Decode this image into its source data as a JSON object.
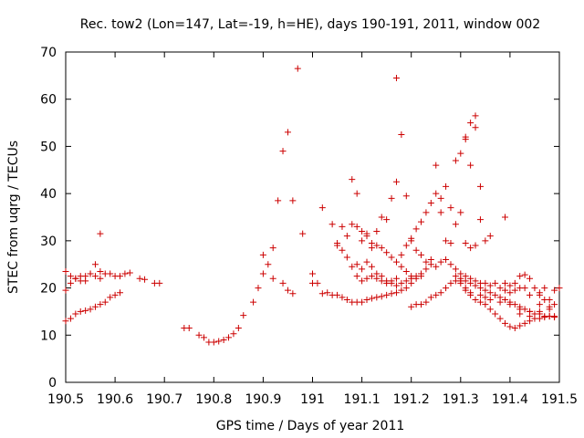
{
  "chart_data": {
    "type": "scatter",
    "title": "Rec. tow2 (Lon=147, Lat=-19, h=HE), days 190-191, 2011, window 002",
    "xlabel": "GPS time / Days of year 2011",
    "ylabel": "STEC from uqrg / TECUs",
    "xlim": [
      190.5,
      191.5
    ],
    "ylim": [
      0,
      70
    ],
    "xticks": [
      190.5,
      190.6,
      190.7,
      190.8,
      190.9,
      191,
      191.1,
      191.2,
      191.3,
      191.4,
      191.5
    ],
    "xtick_labels": [
      "190.5",
      "190.6",
      "190.7",
      "190.8",
      "190.9",
      "191",
      "191.1",
      "191.2",
      "191.3",
      "191.4",
      "191.5"
    ],
    "yticks": [
      0,
      10,
      20,
      30,
      40,
      50,
      60,
      70
    ],
    "ytick_labels": [
      "0",
      "10",
      "20",
      "30",
      "40",
      "50",
      "60",
      "70"
    ],
    "grid": false,
    "marker": "+",
    "color": "#cc0000",
    "series": [
      {
        "points": [
          [
            190.5,
            23.5
          ],
          [
            190.51,
            22.5
          ],
          [
            190.52,
            22.0
          ],
          [
            190.53,
            22.5
          ],
          [
            190.54,
            22.5
          ],
          [
            190.55,
            23.0
          ],
          [
            190.56,
            22.5
          ],
          [
            190.57,
            22.0
          ],
          [
            190.58,
            23.0
          ],
          [
            190.59,
            23.0
          ],
          [
            190.6,
            22.5
          ],
          [
            190.61,
            22.5
          ],
          [
            190.62,
            23.0
          ],
          [
            190.63,
            23.2
          ],
          [
            190.65,
            22.0
          ],
          [
            190.66,
            21.8
          ],
          [
            190.68,
            21.0
          ],
          [
            190.69,
            21.0
          ],
          [
            190.57,
            31.5
          ],
          [
            190.5,
            19.5
          ],
          [
            190.51,
            21.0
          ],
          [
            190.52,
            22.0
          ],
          [
            190.53,
            21.5
          ],
          [
            190.54,
            21.5
          ],
          [
            190.55,
            23.0
          ],
          [
            190.56,
            25.0
          ],
          [
            190.57,
            23.5
          ],
          [
            190.5,
            13.0
          ],
          [
            190.51,
            13.5
          ],
          [
            190.52,
            14.5
          ],
          [
            190.53,
            15.0
          ],
          [
            190.54,
            15.2
          ],
          [
            190.55,
            15.5
          ],
          [
            190.56,
            16.0
          ],
          [
            190.57,
            16.5
          ],
          [
            190.58,
            17.0
          ],
          [
            190.59,
            18.0
          ],
          [
            190.6,
            18.5
          ],
          [
            190.61,
            19.0
          ],
          [
            190.74,
            11.5
          ],
          [
            190.75,
            11.5
          ],
          [
            190.77,
            10.0
          ],
          [
            190.78,
            9.5
          ],
          [
            190.79,
            8.5
          ],
          [
            190.8,
            8.5
          ],
          [
            190.81,
            8.7
          ],
          [
            190.82,
            9.0
          ],
          [
            190.83,
            9.5
          ],
          [
            190.84,
            10.3
          ],
          [
            190.85,
            11.5
          ],
          [
            190.86,
            14.2
          ],
          [
            190.88,
            17.0
          ],
          [
            190.89,
            20.0
          ],
          [
            190.9,
            23.0
          ],
          [
            190.91,
            25.0
          ],
          [
            190.92,
            28.5
          ],
          [
            190.93,
            38.5
          ],
          [
            190.94,
            49.0
          ],
          [
            190.95,
            53.0
          ],
          [
            190.96,
            38.5
          ],
          [
            190.97,
            66.5
          ],
          [
            190.98,
            31.5
          ],
          [
            190.9,
            27.0
          ],
          [
            190.92,
            22.0
          ],
          [
            190.94,
            21.0
          ],
          [
            190.95,
            19.5
          ],
          [
            190.96,
            18.8
          ],
          [
            191.0,
            23.0
          ],
          [
            191.01,
            21.0
          ],
          [
            191.02,
            18.8
          ],
          [
            191.03,
            19.0
          ],
          [
            191.04,
            18.5
          ],
          [
            191.05,
            18.5
          ],
          [
            191.06,
            18.0
          ],
          [
            191.07,
            17.5
          ],
          [
            191.08,
            17.0
          ],
          [
            191.09,
            17.0
          ],
          [
            191.1,
            17.0
          ],
          [
            191.11,
            17.5
          ],
          [
            191.12,
            17.8
          ],
          [
            191.13,
            18.0
          ],
          [
            191.14,
            18.2
          ],
          [
            191.15,
            18.5
          ],
          [
            191.16,
            18.8
          ],
          [
            191.17,
            19.0
          ],
          [
            191.18,
            19.5
          ],
          [
            191.19,
            20.0
          ],
          [
            191.2,
            21.0
          ],
          [
            191.0,
            21.0
          ],
          [
            191.02,
            37.0
          ],
          [
            191.04,
            33.5
          ],
          [
            191.05,
            29.5
          ],
          [
            191.06,
            33.0
          ],
          [
            191.07,
            31.0
          ],
          [
            191.08,
            43.0
          ],
          [
            191.09,
            40.0
          ],
          [
            191.1,
            30.0
          ],
          [
            191.11,
            31.5
          ],
          [
            191.12,
            28.5
          ],
          [
            191.13,
            32.0
          ],
          [
            191.14,
            35.0
          ],
          [
            191.15,
            34.5
          ],
          [
            191.16,
            39.0
          ],
          [
            191.17,
            42.5
          ],
          [
            191.18,
            52.5
          ],
          [
            191.19,
            39.5
          ],
          [
            191.17,
            64.5
          ],
          [
            191.05,
            29.0
          ],
          [
            191.06,
            28.0
          ],
          [
            191.07,
            26.5
          ],
          [
            191.08,
            24.5
          ],
          [
            191.09,
            22.5
          ],
          [
            191.1,
            21.5
          ],
          [
            191.11,
            22.0
          ],
          [
            191.12,
            22.5
          ],
          [
            191.13,
            22.0
          ],
          [
            191.14,
            21.5
          ],
          [
            191.15,
            21.0
          ],
          [
            191.16,
            21.0
          ],
          [
            191.17,
            20.5
          ],
          [
            191.18,
            21.0
          ],
          [
            191.19,
            21.5
          ],
          [
            191.2,
            22.0
          ],
          [
            191.21,
            22.0
          ],
          [
            191.22,
            22.5
          ],
          [
            191.09,
            25.0
          ],
          [
            191.1,
            24.0
          ],
          [
            191.11,
            25.5
          ],
          [
            191.12,
            24.5
          ],
          [
            191.13,
            23.0
          ],
          [
            191.14,
            22.5
          ],
          [
            191.15,
            21.5
          ],
          [
            191.16,
            21.5
          ],
          [
            191.17,
            22.0
          ],
          [
            191.08,
            33.5
          ],
          [
            191.09,
            33.0
          ],
          [
            191.1,
            32.0
          ],
          [
            191.11,
            31.0
          ],
          [
            191.12,
            29.5
          ],
          [
            191.13,
            29.0
          ],
          [
            191.14,
            28.5
          ],
          [
            191.15,
            27.5
          ],
          [
            191.16,
            26.5
          ],
          [
            191.17,
            25.5
          ],
          [
            191.18,
            24.5
          ],
          [
            191.19,
            23.5
          ],
          [
            191.2,
            22.5
          ],
          [
            191.18,
            27.0
          ],
          [
            191.19,
            29.0
          ],
          [
            191.2,
            30.5
          ],
          [
            191.21,
            32.5
          ],
          [
            191.22,
            34.0
          ],
          [
            191.23,
            36.0
          ],
          [
            191.24,
            38.0
          ],
          [
            191.25,
            40.0
          ],
          [
            191.26,
            39.0
          ],
          [
            191.27,
            41.5
          ],
          [
            191.28,
            37.0
          ],
          [
            191.29,
            47.0
          ],
          [
            191.3,
            48.5
          ],
          [
            191.31,
            52.0
          ],
          [
            191.32,
            55.0
          ],
          [
            191.33,
            56.5
          ],
          [
            191.31,
            51.5
          ],
          [
            191.33,
            54.0
          ],
          [
            191.32,
            46.0
          ],
          [
            191.34,
            41.5
          ],
          [
            191.34,
            34.5
          ],
          [
            191.35,
            30.0
          ],
          [
            191.36,
            31.0
          ],
          [
            191.39,
            35.0
          ],
          [
            191.2,
            30.0
          ],
          [
            191.21,
            28.0
          ],
          [
            191.22,
            27.0
          ],
          [
            191.23,
            25.5
          ],
          [
            191.24,
            26.0
          ],
          [
            191.25,
            46.0
          ],
          [
            191.26,
            36.0
          ],
          [
            191.27,
            30.0
          ],
          [
            191.28,
            29.5
          ],
          [
            191.29,
            33.5
          ],
          [
            191.3,
            36.0
          ],
          [
            191.31,
            29.5
          ],
          [
            191.32,
            28.5
          ],
          [
            191.33,
            29.0
          ],
          [
            191.2,
            16.0
          ],
          [
            191.21,
            16.5
          ],
          [
            191.22,
            16.5
          ],
          [
            191.23,
            17.0
          ],
          [
            191.24,
            18.0
          ],
          [
            191.25,
            18.5
          ],
          [
            191.26,
            19.0
          ],
          [
            191.27,
            20.0
          ],
          [
            191.28,
            21.0
          ],
          [
            191.29,
            21.5
          ],
          [
            191.3,
            22.0
          ],
          [
            191.31,
            22.5
          ],
          [
            191.32,
            22.0
          ],
          [
            191.33,
            21.5
          ],
          [
            191.34,
            21.0
          ],
          [
            191.35,
            21.0
          ],
          [
            191.36,
            20.5
          ],
          [
            191.37,
            21.0
          ],
          [
            191.38,
            20.0
          ],
          [
            191.39,
            19.5
          ],
          [
            191.4,
            19.0
          ],
          [
            191.41,
            19.5
          ],
          [
            191.42,
            20.0
          ],
          [
            191.43,
            20.0
          ],
          [
            191.21,
            22.5
          ],
          [
            191.22,
            23.0
          ],
          [
            191.23,
            24.0
          ],
          [
            191.24,
            25.0
          ],
          [
            191.25,
            24.5
          ],
          [
            191.26,
            25.5
          ],
          [
            191.27,
            26.0
          ],
          [
            191.28,
            25.0
          ],
          [
            191.29,
            24.0
          ],
          [
            191.3,
            23.0
          ],
          [
            191.31,
            21.5
          ],
          [
            191.32,
            21.0
          ],
          [
            191.33,
            20.5
          ],
          [
            191.34,
            20.0
          ],
          [
            191.35,
            19.5
          ],
          [
            191.36,
            19.0
          ],
          [
            191.37,
            18.5
          ],
          [
            191.38,
            18.0
          ],
          [
            191.39,
            17.5
          ],
          [
            191.4,
            17.0
          ],
          [
            191.41,
            16.5
          ],
          [
            191.42,
            16.0
          ],
          [
            191.43,
            15.5
          ],
          [
            191.44,
            15.0
          ],
          [
            191.45,
            14.5
          ],
          [
            191.46,
            14.5
          ],
          [
            191.47,
            14.0
          ],
          [
            191.48,
            14.0
          ],
          [
            191.49,
            13.8
          ],
          [
            191.29,
            22.5
          ],
          [
            191.3,
            21.0
          ],
          [
            191.31,
            19.5
          ],
          [
            191.32,
            18.5
          ],
          [
            191.33,
            17.5
          ],
          [
            191.34,
            17.0
          ],
          [
            191.35,
            16.5
          ],
          [
            191.36,
            15.5
          ],
          [
            191.37,
            14.5
          ],
          [
            191.38,
            13.5
          ],
          [
            191.39,
            12.5
          ],
          [
            191.4,
            11.8
          ],
          [
            191.41,
            11.5
          ],
          [
            191.42,
            12.0
          ],
          [
            191.43,
            12.5
          ],
          [
            191.44,
            13.0
          ],
          [
            191.45,
            13.5
          ],
          [
            191.46,
            13.5
          ],
          [
            191.47,
            13.8
          ],
          [
            191.48,
            14.0
          ],
          [
            191.49,
            14.0
          ],
          [
            191.3,
            21.5
          ],
          [
            191.31,
            20.0
          ],
          [
            191.32,
            19.0
          ],
          [
            191.34,
            18.5
          ],
          [
            191.35,
            18.0
          ],
          [
            191.36,
            17.5
          ],
          [
            191.38,
            17.0
          ],
          [
            191.4,
            16.5
          ],
          [
            191.42,
            15.5
          ],
          [
            191.44,
            15.0
          ],
          [
            191.46,
            15.0
          ],
          [
            191.48,
            15.5
          ],
          [
            191.39,
            21.0
          ],
          [
            191.4,
            20.5
          ],
          [
            191.41,
            21.0
          ],
          [
            191.42,
            22.5
          ],
          [
            191.43,
            22.8
          ],
          [
            191.44,
            22.0
          ],
          [
            191.45,
            20.0
          ],
          [
            191.46,
            18.5
          ],
          [
            191.47,
            17.5
          ],
          [
            191.48,
            17.5
          ],
          [
            191.49,
            19.5
          ],
          [
            191.5,
            20.0
          ],
          [
            191.42,
            14.5
          ],
          [
            191.44,
            14.0
          ],
          [
            191.46,
            16.5
          ],
          [
            191.48,
            16.0
          ],
          [
            191.49,
            16.5
          ],
          [
            191.44,
            18.5
          ],
          [
            191.46,
            19.0
          ],
          [
            191.47,
            20.0
          ]
        ]
      }
    ]
  }
}
